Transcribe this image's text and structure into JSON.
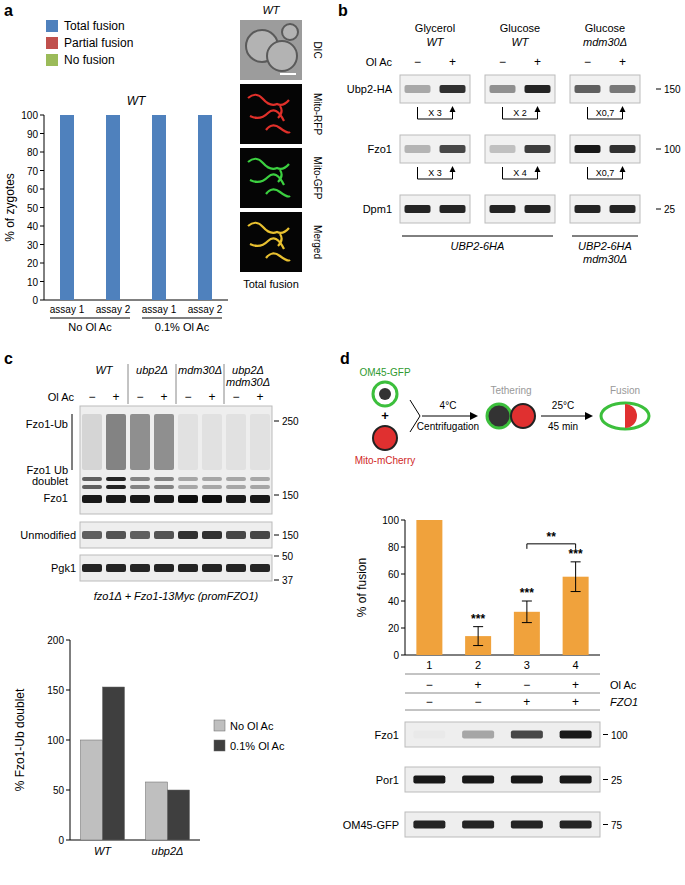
{
  "panel_labels": [
    "a",
    "b",
    "c",
    "d"
  ],
  "chart_data": [
    {
      "type": "bar",
      "title": "WT",
      "y_label": "% of zygotes",
      "categories": [
        "assay 1",
        "assay 2",
        "assay 1",
        "assay 2"
      ],
      "category_groups": [
        "No Ol Ac",
        "0.1% Ol Ac"
      ],
      "series": [
        {
          "name": "Total fusion",
          "color": "#4f81bd",
          "values": [
            100,
            100,
            100,
            100
          ]
        },
        {
          "name": "Partial fusion",
          "color": "#c0504d",
          "values": [
            0,
            0,
            0,
            0
          ]
        },
        {
          "name": "No fusion",
          "color": "#9bbb59",
          "values": [
            0,
            0,
            0,
            0
          ]
        }
      ],
      "stacked": true,
      "legend": "top-left",
      "ylim": [
        0,
        100
      ],
      "yticks": [
        0,
        10,
        20,
        30,
        40,
        50,
        60,
        70,
        80,
        90,
        100
      ],
      "grid": false
    },
    {
      "type": "bar",
      "y_label": "% Fzo1-Ub doublet",
      "categories": [
        "WT",
        "ubp2Δ"
      ],
      "series": [
        {
          "name": "No Ol Ac",
          "color": "#bfbfbf",
          "values": [
            100,
            58
          ]
        },
        {
          "name": "0.1% Ol Ac",
          "color": "#3f3f3f",
          "values": [
            153,
            50
          ]
        }
      ],
      "legend": "right",
      "ylim": [
        0,
        200
      ],
      "yticks": [
        0,
        50,
        100,
        150,
        200
      ],
      "grid": false
    },
    {
      "type": "bar",
      "y_label": "% of fusion",
      "categories": [
        "1",
        "2",
        "3",
        "4"
      ],
      "values": [
        100,
        14,
        32,
        58
      ],
      "errors": [
        null,
        7,
        8,
        11
      ],
      "color": "#f0a23c",
      "annotations": [
        {
          "text": "***",
          "index": 1
        },
        {
          "text": "***",
          "index": 2
        },
        {
          "text": "***",
          "index": 3
        },
        {
          "text": "**",
          "from": 2,
          "to": 3
        }
      ],
      "conditions": [
        {
          "label": "Ol Ac",
          "values": [
            "−",
            "+",
            "−",
            "+"
          ]
        },
        {
          "label": "FZO1",
          "values": [
            "−",
            "−",
            "+",
            "+"
          ]
        }
      ],
      "ylim": [
        0,
        100
      ],
      "yticks": [
        0,
        20,
        40,
        60,
        80,
        100
      ],
      "grid": false
    }
  ],
  "micrograph_a": {
    "genotype": "WT",
    "channels": [
      "DIC",
      "Mito-RFP",
      "Mito-GFP",
      "Merged"
    ],
    "caption": "Total fusion"
  },
  "blot_b": {
    "groups": [
      {
        "condition": "Glycerol",
        "genotype": "WT"
      },
      {
        "condition": "Glucose",
        "genotype": "WT"
      },
      {
        "condition": "Glucose",
        "genotype": "mdm30Δ"
      }
    ],
    "treatment": "Ol Ac",
    "lanes": [
      "−",
      "+",
      "−",
      "+",
      "−",
      "+"
    ],
    "rows": [
      {
        "label": "Ubp2-HA",
        "marker": 150,
        "intensities": [
          0.3,
          0.8,
          0.4,
          0.85,
          0.6,
          0.5
        ],
        "folds": [
          "X 3",
          "X 2",
          "X0,7"
        ]
      },
      {
        "label": "Fzo1",
        "marker": 100,
        "intensities": [
          0.25,
          0.7,
          0.2,
          0.75,
          0.9,
          0.8
        ],
        "folds": [
          "X 3",
          "X 4",
          "X0,7"
        ]
      },
      {
        "label": "Dpm1",
        "marker": 25,
        "intensities": [
          0.85,
          0.85,
          0.85,
          0.85,
          0.85,
          0.85
        ]
      }
    ],
    "strains": [
      {
        "lines": [
          "UBP2-6HA"
        ],
        "span": 2
      },
      {
        "lines": [
          "UBP2-6HA",
          "mdm30Δ"
        ],
        "span": 1
      }
    ]
  },
  "blot_c": {
    "genotypes": [
      [
        "WT"
      ],
      [
        "ubp2Δ"
      ],
      [
        "mdm30Δ"
      ],
      [
        "ubp2Δ",
        "mdm30Δ"
      ]
    ],
    "treatment": "Ol Ac",
    "lanes": [
      "−",
      "+",
      "−",
      "+",
      "−",
      "+",
      "−",
      "+"
    ],
    "main": {
      "labels": [
        [
          "Fzo1-Ub"
        ],
        [
          "Fzo1 Ub",
          "doublet"
        ],
        [
          "Fzo1"
        ]
      ],
      "markers": [
        250,
        150
      ],
      "ub_smear": [
        0.1,
        0.45,
        0.4,
        0.4,
        0.05,
        0.05,
        0.05,
        0.05
      ],
      "doublet": [
        0.6,
        0.85,
        0.45,
        0.45,
        0.3,
        0.3,
        0.3,
        0.3
      ],
      "fzo1": [
        0.9,
        0.9,
        0.9,
        0.9,
        0.95,
        0.95,
        0.9,
        0.9
      ]
    },
    "unmodified": {
      "label": "Unmodified",
      "marker": 150,
      "intensities": [
        0.6,
        0.65,
        0.6,
        0.65,
        0.8,
        0.8,
        0.7,
        0.7
      ]
    },
    "pgk1": {
      "label": "Pgk1",
      "markers": [
        50,
        37
      ],
      "intensities": [
        0.85,
        0.85,
        0.85,
        0.85,
        0.85,
        0.85,
        0.85,
        0.85
      ]
    },
    "caption": "fzo1Δ + Fzo1-13Myc (promFZO1)"
  },
  "schematic_d": {
    "donor": "OM45-GFP",
    "join": "+",
    "acceptor": "Mito-mCherry",
    "step1": [
      "4°C",
      "Centrifugation"
    ],
    "stage1": "Tethering",
    "step2": [
      "25°C",
      "45 min"
    ],
    "stage2": "Fusion"
  },
  "blot_d": {
    "rows": [
      {
        "label": "Fzo1",
        "marker": 100,
        "intensities": [
          0.02,
          0.3,
          0.7,
          0.9
        ]
      },
      {
        "label": "Por1",
        "marker": 25,
        "intensities": [
          0.9,
          0.9,
          0.9,
          0.9
        ]
      },
      {
        "label": "OM45-GFP",
        "marker": 75,
        "intensities": [
          0.85,
          0.85,
          0.85,
          0.85
        ]
      }
    ]
  }
}
